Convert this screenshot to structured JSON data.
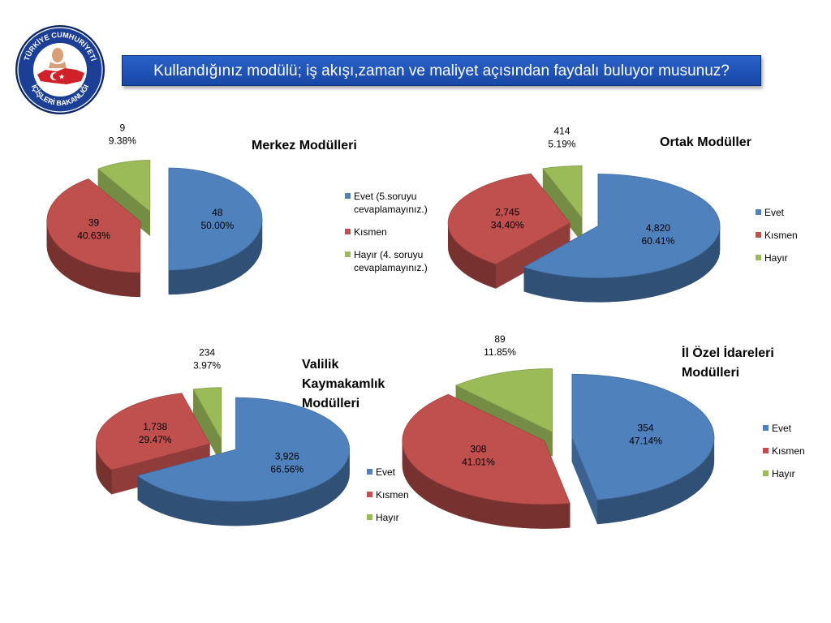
{
  "header": {
    "title": "Kullandığınız modülü; iş akışı,zaman ve maliyet açısından faydalı buluyor musunuz?",
    "logo_text_top": "TÜRKİYE CUMHURİYETİ",
    "logo_text_bottom": "İÇİŞLERİ BAKANLIĞI"
  },
  "colors": {
    "evet": "#4f81bd",
    "kismen": "#c0504d",
    "hayir": "#9bbb59",
    "title_bg": "#1f55b8"
  },
  "chart_data": [
    {
      "type": "pie",
      "title": "Merkez Modülleri",
      "categories": [
        "Evet (5.soruyu cevaplamayınız.)",
        "Kısmen",
        "Hayır (4. soruyu cevaplamayınız.)"
      ],
      "values": [
        48,
        39,
        9
      ],
      "value_labels": [
        "48",
        "39",
        "9"
      ],
      "percent_labels": [
        "50.00%",
        "40.63%",
        "9.38%"
      ],
      "legend": "right",
      "exploded": true
    },
    {
      "type": "pie",
      "title": "Ortak Modüller",
      "categories": [
        "Evet",
        "Kısmen",
        "Hayır"
      ],
      "values": [
        4820,
        2745,
        414
      ],
      "value_labels": [
        "4,820",
        "2,745",
        "414"
      ],
      "percent_labels": [
        "60.41%",
        "34.40%",
        "5.19%"
      ],
      "legend": "right",
      "exploded": true
    },
    {
      "type": "pie",
      "title": "Valilik Kaymakamlık Modülleri",
      "title_lines": [
        "Valilik",
        "Kaymakamlık",
        "Modülleri"
      ],
      "categories": [
        "Evet",
        "Kısmen",
        "Hayır"
      ],
      "values": [
        3926,
        1738,
        234
      ],
      "value_labels": [
        "3,926",
        "1,738",
        "234"
      ],
      "percent_labels": [
        "66.56%",
        "29.47%",
        "3.97%"
      ],
      "legend": "right",
      "exploded": true
    },
    {
      "type": "pie",
      "title": "İl Özel İdareleri Modülleri",
      "title_lines": [
        "İl Özel İdareleri",
        "Modülleri"
      ],
      "categories": [
        "Evet",
        "Kısmen",
        "Hayır"
      ],
      "values": [
        354,
        308,
        89
      ],
      "value_labels": [
        "354",
        "308",
        "89"
      ],
      "percent_labels": [
        "47.14%",
        "41.01%",
        "11.85%"
      ],
      "legend": "right",
      "exploded": true
    }
  ],
  "legends": [
    {
      "items": [
        {
          "lines": [
            "Evet (5.soruyu",
            "cevaplamayınız.)"
          ]
        },
        {
          "lines": [
            "Kısmen"
          ]
        },
        {
          "lines": [
            "Hayır (4. soruyu",
            "cevaplamayınız.)"
          ]
        }
      ]
    },
    {
      "items": [
        {
          "lines": [
            "Evet"
          ]
        },
        {
          "lines": [
            "Kısmen"
          ]
        },
        {
          "lines": [
            "Hayır"
          ]
        }
      ]
    },
    {
      "items": [
        {
          "lines": [
            "Evet"
          ]
        },
        {
          "lines": [
            "Kısmen"
          ]
        },
        {
          "lines": [
            "Hayır"
          ]
        }
      ]
    },
    {
      "items": [
        {
          "lines": [
            "Evet"
          ]
        },
        {
          "lines": [
            "Kısmen"
          ]
        },
        {
          "lines": [
            "Hayır"
          ]
        }
      ]
    }
  ]
}
